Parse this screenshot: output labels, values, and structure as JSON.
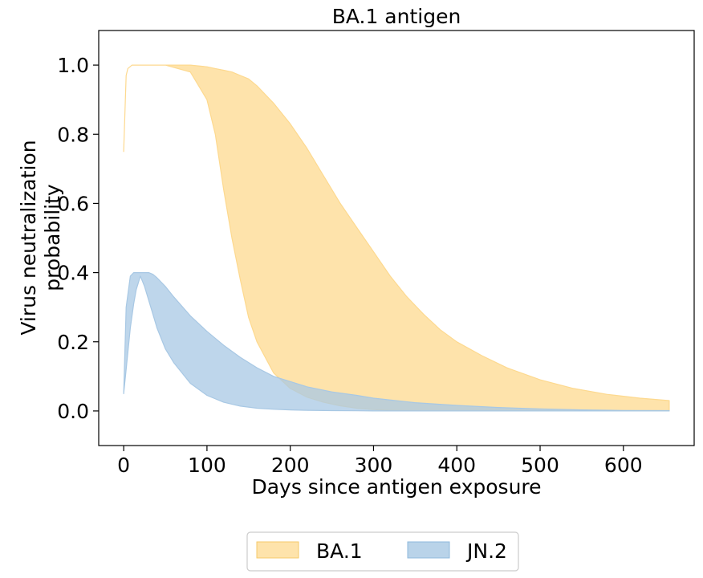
{
  "chart_data": {
    "type": "area",
    "title": "BA.1 antigen",
    "xlabel": "Days since antigen exposure",
    "ylabel": [
      "Virus neutralization",
      "probability"
    ],
    "xlim": [
      -30,
      685
    ],
    "ylim": [
      -0.1,
      1.1
    ],
    "xticks": [
      0,
      100,
      200,
      300,
      400,
      500,
      600
    ],
    "yticks": [
      0.0,
      0.2,
      0.4,
      0.6,
      0.8,
      1.0
    ],
    "ytick_labels": [
      "0.0",
      "0.2",
      "0.4",
      "0.6",
      "0.8",
      "1.0"
    ],
    "grid": false,
    "legend_position": "bottom-center",
    "series": [
      {
        "name": "BA.1",
        "color": "#fdd98f",
        "x": [
          0,
          3,
          5,
          10,
          20,
          30,
          50,
          80,
          100,
          110,
          120,
          130,
          140,
          150,
          160,
          180,
          200,
          220,
          240,
          260,
          280,
          300,
          320,
          340,
          360,
          380,
          400,
          430,
          460,
          500,
          540,
          580,
          620,
          655
        ],
        "upper": [
          0.75,
          0.97,
          0.99,
          1.0,
          1.0,
          1.0,
          1.0,
          1.0,
          0.995,
          0.99,
          0.985,
          0.98,
          0.97,
          0.96,
          0.94,
          0.89,
          0.83,
          0.76,
          0.68,
          0.6,
          0.53,
          0.46,
          0.39,
          0.33,
          0.28,
          0.235,
          0.2,
          0.16,
          0.125,
          0.09,
          0.065,
          0.048,
          0.037,
          0.03
        ],
        "lower": [
          0.75,
          0.97,
          0.99,
          1.0,
          1.0,
          1.0,
          1.0,
          0.98,
          0.9,
          0.8,
          0.64,
          0.5,
          0.38,
          0.27,
          0.2,
          0.11,
          0.065,
          0.04,
          0.025,
          0.015,
          0.008,
          0.004,
          0.002,
          0.001,
          0,
          0,
          0,
          0,
          0,
          0,
          0,
          0,
          0,
          0
        ]
      },
      {
        "name": "JN.2",
        "color": "#a8c8e4",
        "x": [
          0,
          3,
          8,
          12,
          15,
          20,
          25,
          30,
          35,
          40,
          50,
          60,
          80,
          100,
          120,
          140,
          160,
          180,
          200,
          220,
          250,
          280,
          300,
          350,
          400,
          450,
          500,
          550,
          600,
          655
        ],
        "upper": [
          0.05,
          0.3,
          0.39,
          0.4,
          0.4,
          0.4,
          0.4,
          0.4,
          0.395,
          0.385,
          0.36,
          0.33,
          0.275,
          0.23,
          0.19,
          0.155,
          0.125,
          0.1,
          0.085,
          0.07,
          0.055,
          0.045,
          0.037,
          0.024,
          0.016,
          0.01,
          0.006,
          0.003,
          0.0015,
          0.001
        ],
        "lower": [
          0.05,
          0.12,
          0.24,
          0.31,
          0.35,
          0.39,
          0.36,
          0.32,
          0.28,
          0.24,
          0.18,
          0.14,
          0.08,
          0.045,
          0.025,
          0.014,
          0.008,
          0.005,
          0.003,
          0.002,
          0.001,
          0.0005,
          0,
          0,
          0,
          0,
          0,
          0,
          0,
          0
        ]
      }
    ]
  }
}
